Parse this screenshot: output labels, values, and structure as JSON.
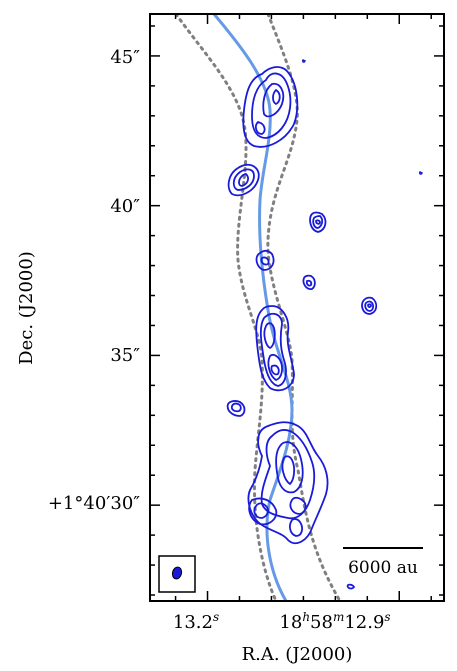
{
  "chart_data": {
    "type": "contour",
    "xlabel": "R.A. (J2000)",
    "ylabel": "Dec. (J2000)",
    "x_ticks": [
      {
        "label": "13.2",
        "sup": "s"
      },
      {
        "label": "18",
        "sup": "h",
        "label2": "58",
        "sup2": "m",
        "label3": "12.9",
        "sup3": "s"
      }
    ],
    "x_tick_values_s": [
      13.2,
      12.9
    ],
    "y_ticks": [
      {
        "value": 45,
        "label": "45″"
      },
      {
        "value": 40,
        "label": "40″"
      },
      {
        "value": 35,
        "label": "35″"
      },
      {
        "value": 30,
        "label": "+1°40′30″"
      }
    ],
    "ylim_arcsec": [
      26.8,
      46.4
    ],
    "xlim_s": [
      13.29,
      12.83
    ],
    "scalebar_label": "6000 au",
    "colors": {
      "contour": "#1a1adb",
      "jet_axis": "#6699e6",
      "envelope": "#808080",
      "beam": "#1a1adb"
    }
  }
}
